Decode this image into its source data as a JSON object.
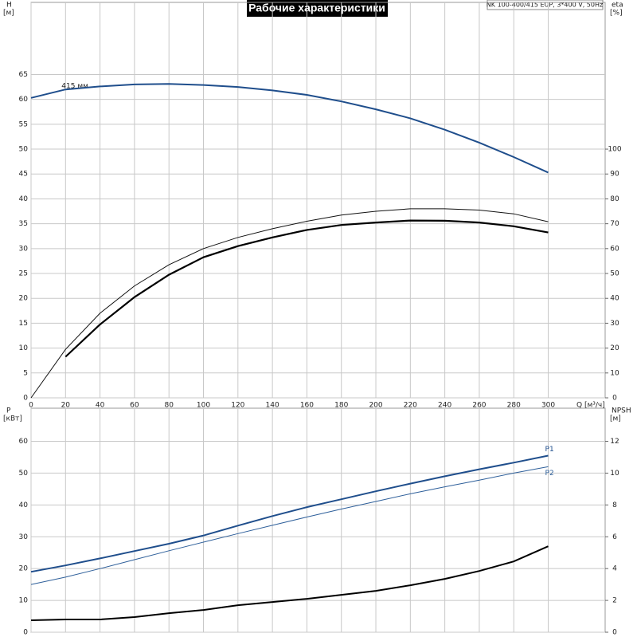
{
  "title": "Рабочие характеристики",
  "pump_label": "NK 100-400/415 EUP, 3*400 V, 50Hz",
  "chart_data": [
    {
      "type": "line",
      "y_label": "H",
      "y_unit": "[м]",
      "y2_label": "eta",
      "y2_unit": "[%]",
      "x_label": "Q [м³/ч]",
      "annotation": "415 мм",
      "x": [
        0,
        20,
        40,
        60,
        80,
        100,
        120,
        140,
        160,
        180,
        200,
        220,
        240,
        260,
        280,
        300
      ],
      "xlim": [
        0,
        333
      ],
      "ylim": [
        0,
        79.5
      ],
      "y2lim": [
        0,
        159
      ],
      "xticks": [
        0,
        20,
        40,
        60,
        80,
        100,
        120,
        140,
        160,
        180,
        200,
        220,
        240,
        260,
        280,
        300
      ],
      "yticks": [
        0,
        5,
        10,
        15,
        20,
        25,
        30,
        35,
        40,
        45,
        50,
        55,
        60,
        65
      ],
      "y2ticks": [
        0,
        10,
        20,
        30,
        40,
        50,
        60,
        70,
        80,
        90,
        100
      ],
      "grid": true,
      "series": [
        {
          "color": "#1f4e8c",
          "line_width": 2,
          "values": [
            60.3,
            62,
            62.6,
            63,
            63.1,
            62.9,
            62.5,
            61.8,
            60.9,
            59.6,
            58,
            56.2,
            53.9,
            51.3,
            48.4,
            45.3
          ]
        },
        {
          "color": "#111111",
          "line_width": 1,
          "axis": "y2",
          "values": [
            0,
            19.5,
            34,
            45,
            53.5,
            60,
            64.5,
            68,
            71,
            73.5,
            75,
            76,
            76,
            75.5,
            74,
            70.8
          ]
        },
        {
          "color": "#000000",
          "line_width": 2.2,
          "axis": "y2",
          "values": [
            null,
            16.5,
            29.5,
            40.5,
            49.5,
            56.5,
            61,
            64.5,
            67.5,
            69.5,
            70.5,
            71.3,
            71.2,
            70.5,
            69,
            66.5
          ]
        }
      ]
    },
    {
      "type": "line",
      "y_label": "P",
      "y_unit": "[кВт]",
      "y2_label": "NPSH",
      "y2_unit": "[м]",
      "x": [
        0,
        20,
        40,
        60,
        80,
        100,
        120,
        140,
        160,
        180,
        200,
        220,
        240,
        260,
        280,
        300
      ],
      "xlim": [
        0,
        333
      ],
      "ylim": [
        0,
        70.4
      ],
      "y2lim": [
        0,
        14.08
      ],
      "yticks": [
        0,
        10,
        20,
        30,
        40,
        50,
        60
      ],
      "y2ticks": [
        0,
        2,
        4,
        6,
        8,
        10,
        12
      ],
      "grid": true,
      "series": [
        {
          "name": "P1",
          "color": "#1f4e8c",
          "line_width": 2,
          "values": [
            19,
            21,
            23.2,
            25.5,
            27.8,
            30.4,
            33.5,
            36.5,
            39.3,
            41.8,
            44.3,
            46.7,
            49,
            51.2,
            53.3,
            55.5
          ]
        },
        {
          "name": "P2",
          "color": "#2e5f9a",
          "line_width": 1,
          "values": [
            15,
            17.3,
            20,
            22.8,
            25.6,
            28.3,
            31,
            33.6,
            36.2,
            38.7,
            41.1,
            43.5,
            45.7,
            47.8,
            50,
            52
          ]
        },
        {
          "color": "#000000",
          "line_width": 2,
          "axis": "y2",
          "values": [
            0.75,
            0.8,
            0.8,
            0.95,
            1.2,
            1.4,
            1.7,
            1.9,
            2.1,
            2.35,
            2.6,
            2.95,
            3.35,
            3.85,
            4.45,
            5.4
          ]
        }
      ]
    }
  ]
}
